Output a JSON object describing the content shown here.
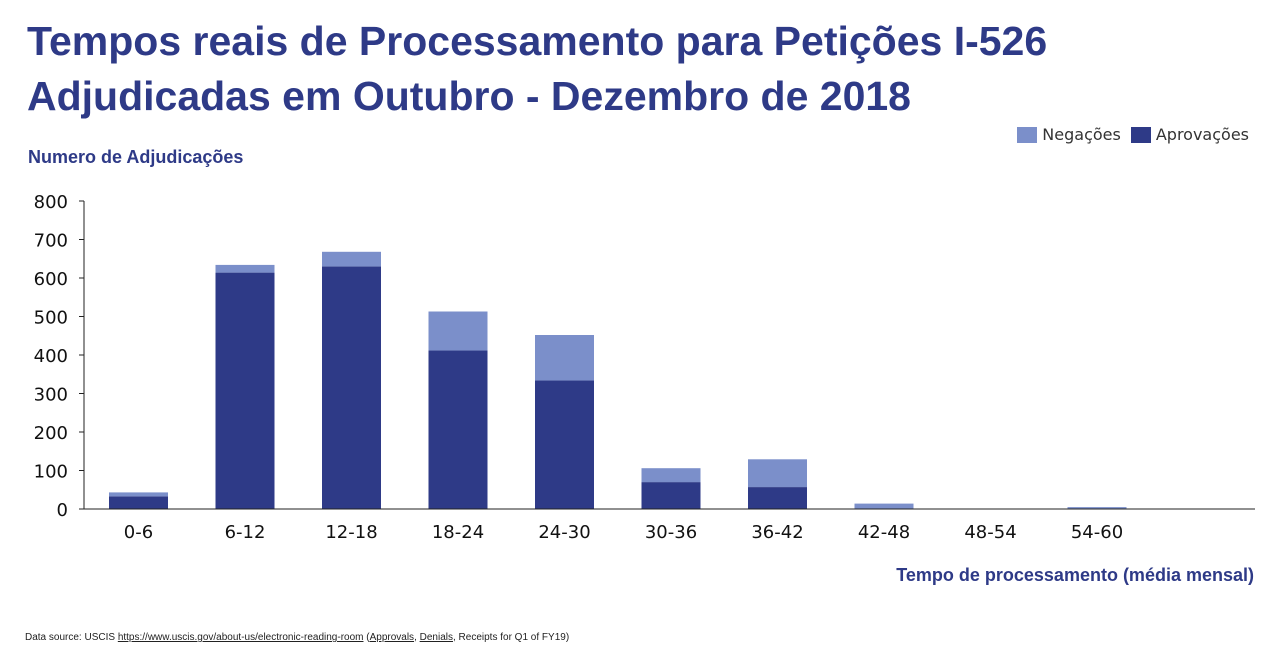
{
  "title_line1": "Tempos reais de Processamento para Petições I-526",
  "title_line2": "Adjudicadas em Outubro - Dezembro de 2018",
  "source": {
    "prefix": "Data source: USCIS ",
    "url": "https://www.uscis.gov/about-us/electronic-reading-room",
    "open": " (",
    "approvals": "Approvals",
    "sep1": ", ",
    "denials": "Denials",
    "sep2": ", ",
    "rest": "Receipts for Q1 of FY19)"
  },
  "colors": {
    "approvals": "#2e3a87",
    "denials": "#7b8fca",
    "title": "#2e3a87"
  },
  "chart_data": {
    "type": "bar",
    "stacked": true,
    "ylabel": "Numero de Adjudicações",
    "xlabel": "Tempo de processamento (média mensal)",
    "categories": [
      "0-6",
      "6-12",
      "12-18",
      "18-24",
      "24-30",
      "30-36",
      "36-42",
      "42-48",
      "48-54",
      "54-60"
    ],
    "series": [
      {
        "name": "Aprovações",
        "values": [
          33,
          614,
          630,
          412,
          334,
          70,
          57,
          0,
          0,
          0
        ]
      },
      {
        "name": "Negações",
        "values": [
          10,
          20,
          38,
          101,
          118,
          36,
          72,
          14,
          0,
          5
        ]
      }
    ],
    "ylim": [
      0,
      800
    ],
    "yticks": [
      0,
      100,
      200,
      300,
      400,
      500,
      600,
      700,
      800
    ],
    "legend_order": [
      "Negações",
      "Aprovações"
    ],
    "legend": "top-right",
    "grid": false
  }
}
